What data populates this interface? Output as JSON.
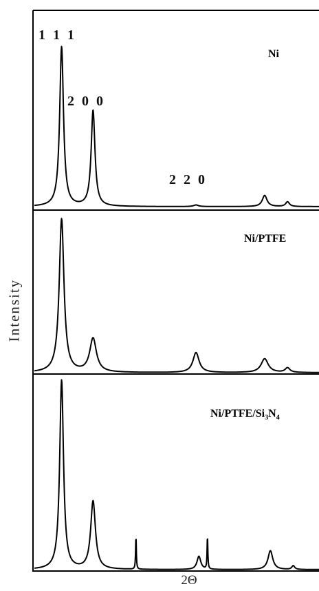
{
  "chart_data": {
    "type": "line",
    "xlabel": "2Θ",
    "ylabel": "Intensity",
    "grid": false,
    "legend": "none",
    "line_color": "#000000",
    "panels": [
      {
        "name": "Ni",
        "label": {
          "main": "Ni",
          "sub_a": "",
          "tail": "",
          "sub_b": ""
        },
        "peaks": [
          {
            "x": 0.1,
            "height": 1.0,
            "width": 0.008,
            "miller": "1 1 1"
          },
          {
            "x": 0.21,
            "height": 0.6,
            "width": 0.008,
            "miller": "2 0 0"
          },
          {
            "x": 0.57,
            "height": 0.01,
            "width": 0.01,
            "miller": "2 2 0"
          },
          {
            "x": 0.81,
            "height": 0.07,
            "width": 0.01
          },
          {
            "x": 0.89,
            "height": 0.03,
            "width": 0.008
          }
        ]
      },
      {
        "name": "Ni/PTFE",
        "label": {
          "main": "Ni/PTFE",
          "sub_a": "",
          "tail": "",
          "sub_b": ""
        },
        "peaks": [
          {
            "x": 0.1,
            "height": 1.0,
            "width": 0.01
          },
          {
            "x": 0.21,
            "height": 0.22,
            "width": 0.014
          },
          {
            "x": 0.57,
            "height": 0.13,
            "width": 0.013
          },
          {
            "x": 0.81,
            "height": 0.09,
            "width": 0.015
          },
          {
            "x": 0.89,
            "height": 0.03,
            "width": 0.01
          }
        ]
      },
      {
        "name": "Ni/PTFE/Si3N4",
        "label": {
          "main": "Ni/PTFE/Si",
          "sub_a": "3",
          "tail": "N",
          "sub_b": "4"
        },
        "peaks": [
          {
            "x": 0.1,
            "height": 1.0,
            "width": 0.008
          },
          {
            "x": 0.21,
            "height": 0.36,
            "width": 0.01
          },
          {
            "x": 0.36,
            "height": 0.18,
            "width": 0.0015
          },
          {
            "x": 0.58,
            "height": 0.07,
            "width": 0.008
          },
          {
            "x": 0.61,
            "height": 0.18,
            "width": 0.0015
          },
          {
            "x": 0.83,
            "height": 0.1,
            "width": 0.01
          },
          {
            "x": 0.91,
            "height": 0.02,
            "width": 0.006
          }
        ]
      }
    ]
  }
}
